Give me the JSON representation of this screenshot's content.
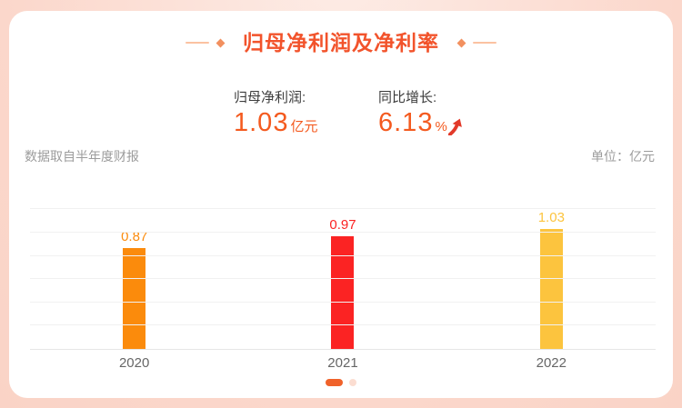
{
  "theme": {
    "accent": "#f2532b",
    "stat_value_color": "#f45a1f",
    "arrow_color": "#e23a2a",
    "gridline_color": "#f1f1f1",
    "baseline_color": "#e6e6e6",
    "dot_active_color": "#f0622a",
    "dot_inactive_color": "#fbddd1"
  },
  "header": {
    "title": "归母净利润及净利率"
  },
  "stats": [
    {
      "label": "归母净利润:",
      "value": "1.03",
      "suffix": "亿元",
      "trend": null
    },
    {
      "label": "同比增长:",
      "value": "6.13",
      "suffix": "%",
      "trend": "up"
    }
  ],
  "meta": {
    "source_note": "数据取自半年度财报",
    "unit_note": "单位：亿元"
  },
  "chart_data": {
    "type": "bar",
    "title": "归母净利润及净利率",
    "categories": [
      "2020",
      "2021",
      "2022"
    ],
    "values": [
      0.87,
      0.97,
      1.03
    ],
    "bar_colors": [
      "#fb8b0c",
      "#fb2323",
      "#fcc43e"
    ],
    "xlabel": "",
    "ylabel": "",
    "unit": "亿元",
    "ylim": [
      0,
      1.25
    ],
    "gridline_step": 0.2,
    "grid": true,
    "legend": false,
    "value_labels": true
  },
  "pagination": {
    "dots": [
      {
        "active": true
      },
      {
        "active": false
      }
    ]
  }
}
